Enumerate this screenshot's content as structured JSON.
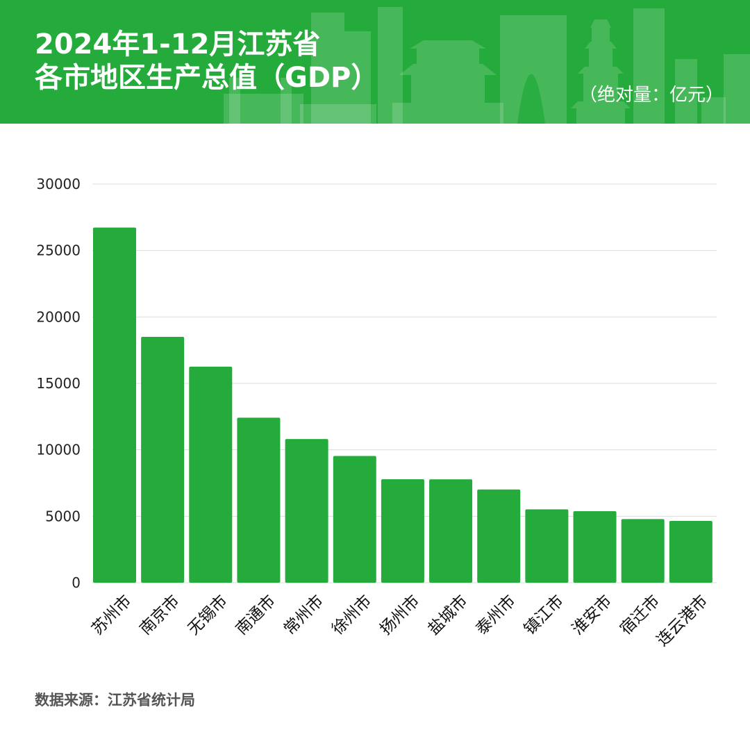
{
  "header": {
    "title_line1": "2024年1-12月江苏省",
    "title_line2": "各市地区生产总值（GDP）",
    "unit": "（绝对量：亿元）",
    "background_color": "#24ab3b"
  },
  "chart_data": {
    "type": "bar",
    "title": "2024年1-12月江苏省各市地区生产总值（GDP）",
    "ylabel": "亿元",
    "xlabel": "",
    "ylim": [
      0,
      30000
    ],
    "yticks": [
      "0",
      "5000",
      "10000",
      "15000",
      "20000",
      "25000",
      "30000"
    ],
    "grid": true,
    "bar_color": "#24ab3b",
    "categories": [
      "苏州市",
      "南京市",
      "无锡市",
      "南通市",
      "常州市",
      "徐州市",
      "扬州市",
      "盐城市",
      "泰州市",
      "镇江市",
      "淮安市",
      "宿迁市",
      "连云港市"
    ],
    "values": [
      26727,
      18501,
      16263,
      12422,
      10814,
      9538,
      7786,
      7779,
      7016,
      5520,
      5382,
      4791,
      4650
    ]
  },
  "footer": {
    "source_label": "数据来源：",
    "source_value": "江苏省统计局"
  }
}
